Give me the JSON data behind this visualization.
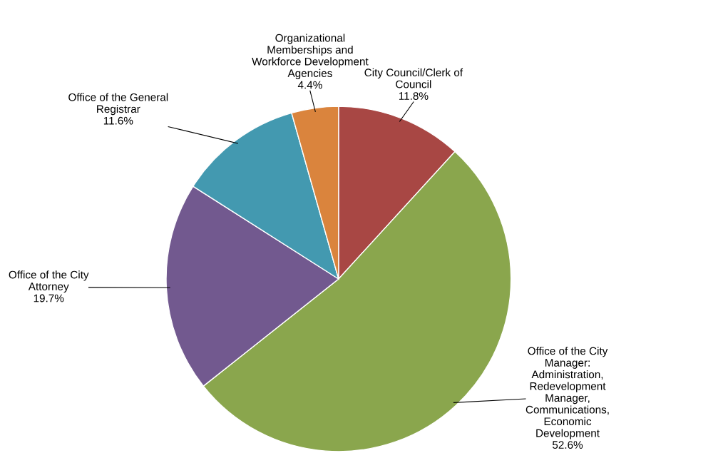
{
  "chart_data": {
    "type": "pie",
    "categories": [
      "City Council/Clerk of\nCouncil",
      "Office of the City\nManager:\nAdministration,\nRedevelopment\nManager,\nCommunications,\nEconomic\nDevelopment",
      "Office of the City\nAttorney",
      "Office of the General\nRegistrar",
      "Organizational\nMemberships and\nWorkforce Development\nAgencies"
    ],
    "values": [
      11.8,
      52.6,
      19.7,
      11.6,
      4.4
    ],
    "value_labels": [
      "11.8%",
      "52.6%",
      "19.7%",
      "11.6%",
      "4.4%"
    ],
    "colors": [
      "#a84744",
      "#8aa64d",
      "#72598f",
      "#4399b0",
      "#da843d"
    ],
    "legend": false
  }
}
